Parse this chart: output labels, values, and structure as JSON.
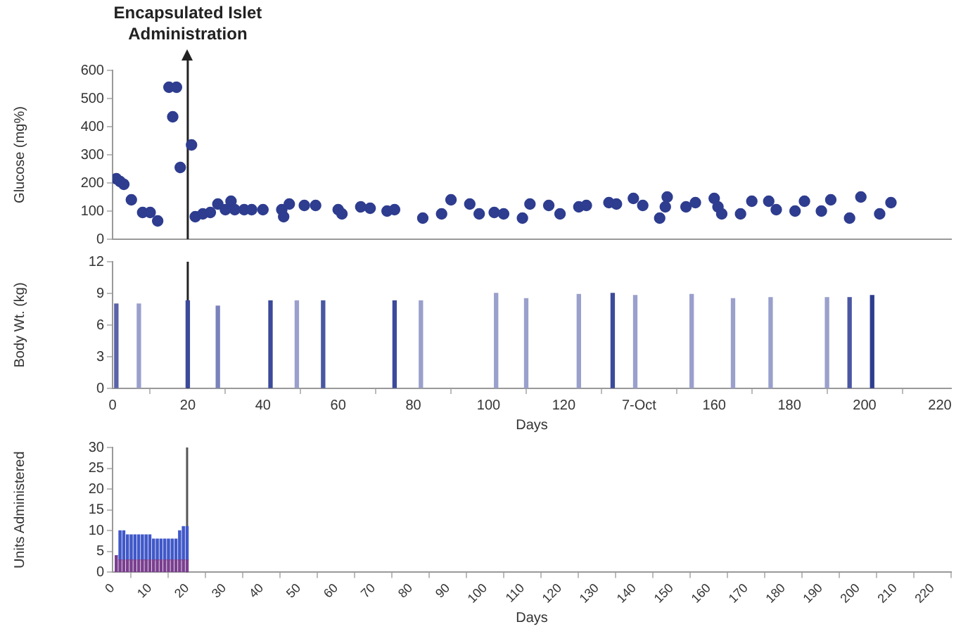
{
  "chart_data": [
    {
      "type": "scatter",
      "ylabel": "Glucose (mg%)",
      "color": "#2e3d8f",
      "marker": "circle",
      "xlim": [
        0,
        223
      ],
      "ylim": [
        0,
        600
      ],
      "yticks": [
        0,
        100,
        200,
        300,
        400,
        500,
        600
      ],
      "tick_labels": "y",
      "x": [
        1,
        2,
        3,
        5,
        8,
        10,
        12,
        15,
        17,
        16,
        18,
        21,
        22,
        24,
        26,
        28,
        30,
        31.5,
        32.5,
        35,
        37,
        40,
        45,
        45.5,
        47,
        51,
        54,
        60,
        61,
        66,
        68.5,
        73,
        75,
        82.5,
        87.5,
        90,
        95,
        97.5,
        101.5,
        104,
        109,
        111,
        116,
        119,
        124,
        126,
        132,
        134,
        138.5,
        141,
        145.5,
        147,
        147.5,
        152.5,
        155,
        160,
        161,
        162,
        167,
        170,
        174.5,
        176.5,
        181.5,
        184,
        188.5,
        191,
        196,
        199,
        204,
        207
      ],
      "values": [
        215,
        205,
        195,
        140,
        95,
        95,
        65,
        540,
        540,
        435,
        255,
        335,
        80,
        90,
        95,
        125,
        105,
        135,
        105,
        105,
        105,
        105,
        105,
        80,
        125,
        120,
        120,
        105,
        90,
        115,
        110,
        100,
        105,
        75,
        90,
        140,
        125,
        90,
        95,
        90,
        75,
        125,
        120,
        90,
        115,
        120,
        130,
        125,
        145,
        120,
        75,
        115,
        150,
        115,
        130,
        145,
        115,
        90,
        90,
        135,
        135,
        105,
        100,
        135,
        100,
        140,
        75,
        150,
        90,
        130
      ],
      "ref_lines": [
        {
          "axis": "x",
          "value": 20,
          "label": "Encapsulated Islet Administration",
          "color": "#222222"
        }
      ]
    },
    {
      "type": "bar",
      "ylabel": "Body Wt. (kg)",
      "xlabel": "Days",
      "xlim": [
        0,
        223
      ],
      "ylim": [
        0,
        12
      ],
      "yticks": [
        0,
        3,
        6,
        9,
        12
      ],
      "xticks": [
        0,
        20,
        40,
        60,
        80,
        100,
        120,
        {
          "value": 140,
          "label": "7-Oct"
        },
        160,
        180,
        200,
        220
      ],
      "x": [
        1,
        7,
        20,
        28,
        42,
        49,
        56,
        75,
        82,
        102,
        110,
        124,
        133,
        139,
        154,
        165,
        175,
        190,
        196,
        202
      ],
      "values": [
        8,
        8,
        8.3,
        7.8,
        8.3,
        8.3,
        8.3,
        8.3,
        8.3,
        9,
        8.5,
        8.9,
        9,
        8.8,
        8.9,
        8.5,
        8.6,
        8.6,
        8.6,
        8.8
      ],
      "colors": [
        "#5a63a8",
        "#9aa0cc",
        "#3b4a9a",
        "#7a82bb",
        "#3b4a9a",
        "#9aa0cc",
        "#4a57a3",
        "#3b4a9a",
        "#9aa0cc",
        "#9aa0cc",
        "#9aa0cc",
        "#9aa0cc",
        "#3b4a9a",
        "#9aa0cc",
        "#9aa0cc",
        "#9aa0cc",
        "#9aa0cc",
        "#9aa0cc",
        "#4a57a3",
        "#2e3d8f"
      ],
      "ref_lines": [
        {
          "axis": "x",
          "value": 20,
          "color": "#222222"
        }
      ]
    },
    {
      "type": "bar",
      "stacked": true,
      "ylabel": "Units Administered",
      "xlabel": "Days",
      "xlim": [
        0,
        225
      ],
      "ylim": [
        0,
        30
      ],
      "yticks": [
        0,
        5,
        10,
        15,
        20,
        25,
        30
      ],
      "xticks": [
        0,
        10,
        20,
        30,
        40,
        50,
        60,
        70,
        80,
        90,
        100,
        110,
        120,
        130,
        140,
        150,
        160,
        170,
        180,
        190,
        200,
        210,
        220
      ],
      "series": [
        {
          "color": "#7a3f8f",
          "x": [
            1,
            2,
            3,
            4,
            5,
            6,
            7,
            8,
            9,
            10,
            11,
            12,
            13,
            14,
            15,
            16,
            17,
            18,
            19,
            20
          ],
          "values": [
            4,
            3,
            3,
            3,
            3,
            3,
            3,
            3,
            3,
            3,
            3,
            3,
            3,
            3,
            3,
            3,
            3,
            3,
            3,
            3
          ]
        },
        {
          "color": "#4058c8",
          "x": [
            1,
            2,
            3,
            4,
            5,
            6,
            7,
            8,
            9,
            10,
            11,
            12,
            13,
            14,
            15,
            16,
            17,
            18,
            19,
            20
          ],
          "values": [
            0,
            7,
            7,
            6,
            6,
            6,
            6,
            6,
            6,
            6,
            5,
            5,
            5,
            5,
            5,
            5,
            5,
            7,
            8,
            8
          ]
        }
      ],
      "ref_lines": [
        {
          "axis": "x",
          "value": 20,
          "color": "#555555"
        }
      ]
    }
  ]
}
